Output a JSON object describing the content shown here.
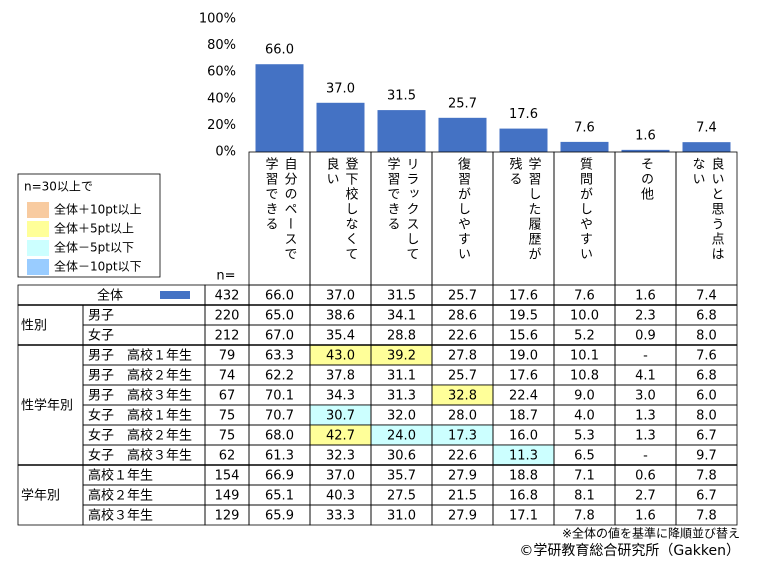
{
  "chart_data": {
    "type": "bar",
    "categories": [
      "自分のペースで学習できる",
      "登下校しなくて良い",
      "リラックスして学習できる",
      "復習がしやすい",
      "学習した履歴が残る",
      "質問がしやすい",
      "その他",
      "良いと思う点はない"
    ],
    "values": [
      66.0,
      37.0,
      31.5,
      25.7,
      17.6,
      7.6,
      1.6,
      7.4
    ],
    "value_labels": [
      "66.0",
      "37.0",
      "31.5",
      "25.7",
      "17.6",
      "7.6",
      "1.6",
      "7.4"
    ],
    "color": "#4472c4",
    "ylim": [
      0,
      100
    ],
    "yticks": [
      {
        "value": 0,
        "label": "0%"
      },
      {
        "value": 20,
        "label": "20%"
      },
      {
        "value": 40,
        "label": "40%"
      },
      {
        "value": 60,
        "label": "60%"
      },
      {
        "value": 80,
        "label": "80%"
      },
      {
        "value": 100,
        "label": "100%"
      }
    ]
  },
  "legend": {
    "title": "n=30以上で",
    "items": [
      {
        "label": "全体＋10pt以上",
        "color": "#f8cba0"
      },
      {
        "label": "全体＋5pt以上",
        "color": "#ffff99"
      },
      {
        "label": "全体－5pt以下",
        "color": "#ccffff"
      },
      {
        "label": "全体－10pt以下",
        "color": "#99ccff"
      }
    ]
  },
  "table": {
    "n_header": "n=",
    "total": {
      "label": "全体",
      "n": 432,
      "values": [
        "66.0",
        "37.0",
        "31.5",
        "25.7",
        "17.6",
        "7.6",
        "1.6",
        "7.4"
      ]
    },
    "groups": [
      {
        "label": "性別",
        "rows": [
          {
            "label": "男子",
            "n": 220,
            "values": [
              "65.0",
              "38.6",
              "34.1",
              "28.6",
              "19.5",
              "10.0",
              "2.3",
              "6.8"
            ]
          },
          {
            "label": "女子",
            "n": 212,
            "values": [
              "67.0",
              "35.4",
              "28.8",
              "22.6",
              "15.6",
              "5.2",
              "0.9",
              "8.0"
            ]
          }
        ]
      },
      {
        "label": "性学年別",
        "rows": [
          {
            "label": "男子　高校１年生",
            "n": 79,
            "values": [
              "63.3",
              "43.0",
              "39.2",
              "27.8",
              "19.0",
              "10.1",
              "-",
              "7.6"
            ],
            "highlights": [
              {
                "col": 1,
                "level": 1
              },
              {
                "col": 2,
                "level": 1
              }
            ]
          },
          {
            "label": "男子　高校２年生",
            "n": 74,
            "values": [
              "62.2",
              "37.8",
              "31.1",
              "25.7",
              "17.6",
              "10.8",
              "4.1",
              "6.8"
            ]
          },
          {
            "label": "男子　高校３年生",
            "n": 67,
            "values": [
              "70.1",
              "34.3",
              "31.3",
              "32.8",
              "22.4",
              "9.0",
              "3.0",
              "6.0"
            ],
            "highlights": [
              {
                "col": 3,
                "level": 1
              }
            ]
          },
          {
            "label": "女子　高校１年生",
            "n": 75,
            "values": [
              "70.7",
              "30.7",
              "32.0",
              "28.0",
              "18.7",
              "4.0",
              "1.3",
              "8.0"
            ],
            "highlights": [
              {
                "col": 1,
                "level": 2
              }
            ]
          },
          {
            "label": "女子　高校２年生",
            "n": 75,
            "values": [
              "68.0",
              "42.7",
              "24.0",
              "17.3",
              "16.0",
              "5.3",
              "1.3",
              "6.7"
            ],
            "highlights": [
              {
                "col": 1,
                "level": 1
              },
              {
                "col": 2,
                "level": 2
              },
              {
                "col": 3,
                "level": 2
              }
            ]
          },
          {
            "label": "女子　高校３年生",
            "n": 62,
            "values": [
              "61.3",
              "32.3",
              "30.6",
              "22.6",
              "11.3",
              "6.5",
              "-",
              "9.7"
            ],
            "highlights": [
              {
                "col": 4,
                "level": 2
              }
            ]
          }
        ]
      },
      {
        "label": "学年別",
        "rows": [
          {
            "label": "高校１年生",
            "n": 154,
            "values": [
              "66.9",
              "37.0",
              "35.7",
              "27.9",
              "18.8",
              "7.1",
              "0.6",
              "7.8"
            ]
          },
          {
            "label": "高校２年生",
            "n": 149,
            "values": [
              "65.1",
              "40.3",
              "27.5",
              "21.5",
              "16.8",
              "8.1",
              "2.7",
              "6.7"
            ]
          },
          {
            "label": "高校３年生",
            "n": 129,
            "values": [
              "65.9",
              "33.3",
              "31.0",
              "27.9",
              "17.1",
              "7.8",
              "1.6",
              "7.8"
            ]
          }
        ]
      }
    ]
  },
  "notes": [
    "※全体の値を基準に降順並び替え",
    "©学研教育総合研究所（Gakken）"
  ]
}
